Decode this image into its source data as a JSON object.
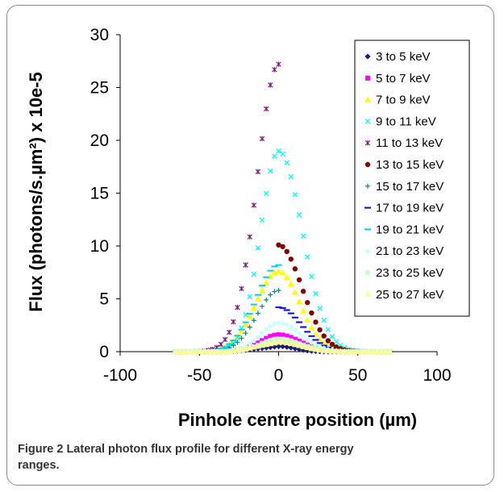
{
  "figure": {
    "caption_label": "Figure 2",
    "caption_text": "Lateral photon flux profile for different X-ray energy ranges."
  },
  "chart_data": {
    "type": "scatter",
    "title": "",
    "xlabel": "Pinhole centre position (µm)",
    "ylabel": "Flux (photons/s.µm²) x 10e-5",
    "xlim": [
      -100,
      100
    ],
    "ylim": [
      0,
      30
    ],
    "xticks": [
      "-100",
      "-50",
      "0",
      "50",
      "100"
    ],
    "yticks": [
      "0",
      "5",
      "10",
      "15",
      "20",
      "25",
      "30"
    ],
    "grid": false,
    "legend_position": "top-right",
    "series": [
      {
        "name": "3 to 5 keV",
        "color": "#1a1a7a",
        "marker": "diamond",
        "peak": 0.5,
        "left": -25,
        "right": 1,
        "from": -65,
        "to": 72
      },
      {
        "name": "5 to 7 keV",
        "color": "#ff00ff",
        "marker": "square",
        "peak": 1.6,
        "left": 0,
        "right": 14,
        "from": -65,
        "to": 72
      },
      {
        "name": "7 to 9 keV",
        "color": "#ffff00",
        "marker": "triangle",
        "peak": 7.6,
        "left": -2,
        "right": 14,
        "from": -65,
        "to": 72
      },
      {
        "name": "9 to 11 keV",
        "color": "#00ffff",
        "marker": "x",
        "peak": 19.0,
        "left": 0,
        "right": 20,
        "from": -65,
        "to": 72
      },
      {
        "name": "11 to 13 keV",
        "color": "#7a1a7a",
        "marker": "star",
        "peak": 27.2,
        "left": -1,
        "right": 20,
        "from": -65,
        "to": 0
      },
      {
        "name": "13 to 15 keV",
        "color": "#800000",
        "marker": "circle",
        "peak": 10.1,
        "left": 0,
        "right": 19,
        "from": 0,
        "to": 72
      },
      {
        "name": "15 to 17 keV",
        "color": "#008080",
        "marker": "plus",
        "peak": 5.8,
        "left": -1,
        "right": 15,
        "from": -65,
        "to": 0
      },
      {
        "name": "17 to 19 keV",
        "color": "#0000ff",
        "marker": "dash",
        "peak": 4.2,
        "left": 2,
        "right": 18,
        "from": 0,
        "to": 72
      },
      {
        "name": "19 to 21 keV",
        "color": "#00ccff",
        "marker": "dash",
        "peak": 8.2,
        "left": -2,
        "right": 15,
        "from": -65,
        "to": 0
      },
      {
        "name": "21 to 23 keV",
        "color": "#ccffff",
        "marker": "diamond",
        "peak": 2.7,
        "left": 2,
        "right": 16,
        "from": -65,
        "to": 72
      },
      {
        "name": "23 to 25 keV",
        "color": "#ccffcc",
        "marker": "square",
        "peak": 1.2,
        "left": 0,
        "right": 15,
        "from": -65,
        "to": 72
      },
      {
        "name": "25 to 27 keV",
        "color": "#ffff99",
        "marker": "triangle",
        "peak": 0.9,
        "left": 0,
        "right": 15,
        "from": -65,
        "to": 72
      }
    ]
  }
}
